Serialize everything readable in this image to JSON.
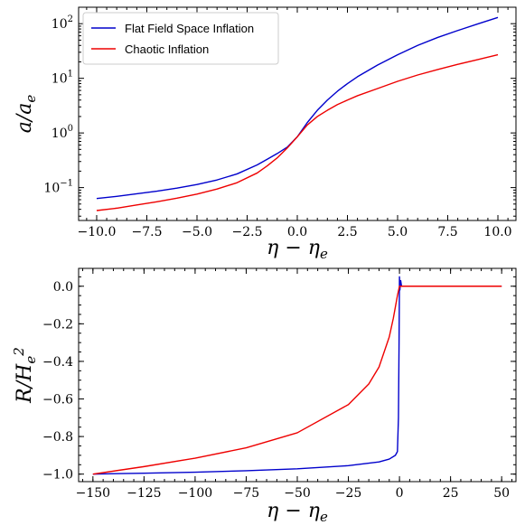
{
  "chart_data": [
    {
      "type": "line",
      "xlabel": "η − η_e",
      "ylabel": "a/a_e",
      "yscale": "log",
      "xlim": [
        -10.9,
        10.9
      ],
      "ylim": [
        0.025,
        200
      ],
      "xticks": [
        -10,
        -7.5,
        -5,
        -2.5,
        0,
        2.5,
        5,
        7.5,
        10
      ],
      "xtick_labels": [
        "−10.0",
        "−7.5",
        "−5.0",
        "−2.5",
        "0.0",
        "2.5",
        "5.0",
        "7.5",
        "10.0"
      ],
      "yticks": [
        0.1,
        1,
        10,
        100
      ],
      "ytick_labels": [
        {
          "base": "10",
          "exp": "−1"
        },
        {
          "base": "10",
          "exp": "0"
        },
        {
          "base": "10",
          "exp": "1"
        },
        {
          "base": "10",
          "exp": "2"
        }
      ],
      "legend": {
        "position": "top-left"
      },
      "series": [
        {
          "name": "Flat Field Space Inflation",
          "color": "#0000cc",
          "x": [
            -10,
            -9,
            -8,
            -7,
            -6,
            -5,
            -4,
            -3,
            -2,
            -1.5,
            -1,
            -0.5,
            0,
            0.5,
            1,
            1.5,
            2,
            2.5,
            3,
            4,
            5,
            6,
            7,
            8,
            9,
            10
          ],
          "y": [
            0.063,
            0.069,
            0.077,
            0.086,
            0.098,
            0.114,
            0.138,
            0.178,
            0.26,
            0.33,
            0.42,
            0.55,
            0.85,
            1.55,
            2.6,
            4.0,
            5.8,
            8.0,
            10.7,
            17.5,
            27,
            40,
            56,
            75,
            99,
            130
          ]
        },
        {
          "name": "Chaotic Inflation",
          "color": "#ee0000",
          "x": [
            -10,
            -9,
            -8,
            -7,
            -6,
            -5,
            -4,
            -3,
            -2,
            -1.5,
            -1,
            -0.5,
            0,
            0.5,
            1,
            1.5,
            2,
            2.5,
            3,
            4,
            5,
            6,
            7,
            8,
            9,
            10
          ],
          "y": [
            0.038,
            0.042,
            0.048,
            0.055,
            0.064,
            0.076,
            0.094,
            0.123,
            0.185,
            0.25,
            0.35,
            0.53,
            0.85,
            1.4,
            2.0,
            2.6,
            3.3,
            4.0,
            4.8,
            6.5,
            8.8,
            11.5,
            14.5,
            18,
            22,
            27
          ]
        }
      ]
    },
    {
      "type": "line",
      "xlabel": "η − η_e",
      "ylabel": "R/H_e^2",
      "xlim": [
        -157,
        57
      ],
      "ylim": [
        -1.04,
        0.095
      ],
      "xticks": [
        -150,
        -125,
        -100,
        -75,
        -50,
        -25,
        0,
        25,
        50
      ],
      "xtick_labels": [
        "−150",
        "−125",
        "−100",
        "−75",
        "−50",
        "−25",
        "0",
        "25",
        "50"
      ],
      "yticks": [
        -1.0,
        -0.8,
        -0.6,
        -0.4,
        -0.2,
        0.0
      ],
      "ytick_labels": [
        "−1.0",
        "−0.8",
        "−0.6",
        "−0.4",
        "−0.2",
        "0.0"
      ],
      "series": [
        {
          "name": "Flat Field Space Inflation",
          "color": "#0000cc",
          "x": [
            -150,
            -125,
            -100,
            -75,
            -50,
            -25,
            -10,
            -5,
            -2,
            -1,
            -0.5,
            -0.2,
            0,
            0.2,
            0.6,
            1.0,
            1.5,
            3,
            50
          ],
          "y": [
            -1.0,
            -0.995,
            -0.99,
            -0.982,
            -0.972,
            -0.955,
            -0.935,
            -0.92,
            -0.9,
            -0.88,
            -0.7,
            -0.3,
            0.05,
            -0.02,
            0.03,
            0.0,
            0.0,
            0.0,
            0.0
          ]
        },
        {
          "name": "Chaotic Inflation",
          "color": "#ee0000",
          "x": [
            -150,
            -125,
            -100,
            -75,
            -50,
            -25,
            -15,
            -10,
            -5,
            -3,
            -2,
            -1,
            0,
            1,
            3,
            50
          ],
          "y": [
            -1.0,
            -0.96,
            -0.915,
            -0.86,
            -0.78,
            -0.63,
            -0.52,
            -0.43,
            -0.27,
            -0.17,
            -0.11,
            -0.05,
            0.0,
            0.0,
            0.0,
            0.0
          ]
        }
      ]
    }
  ]
}
